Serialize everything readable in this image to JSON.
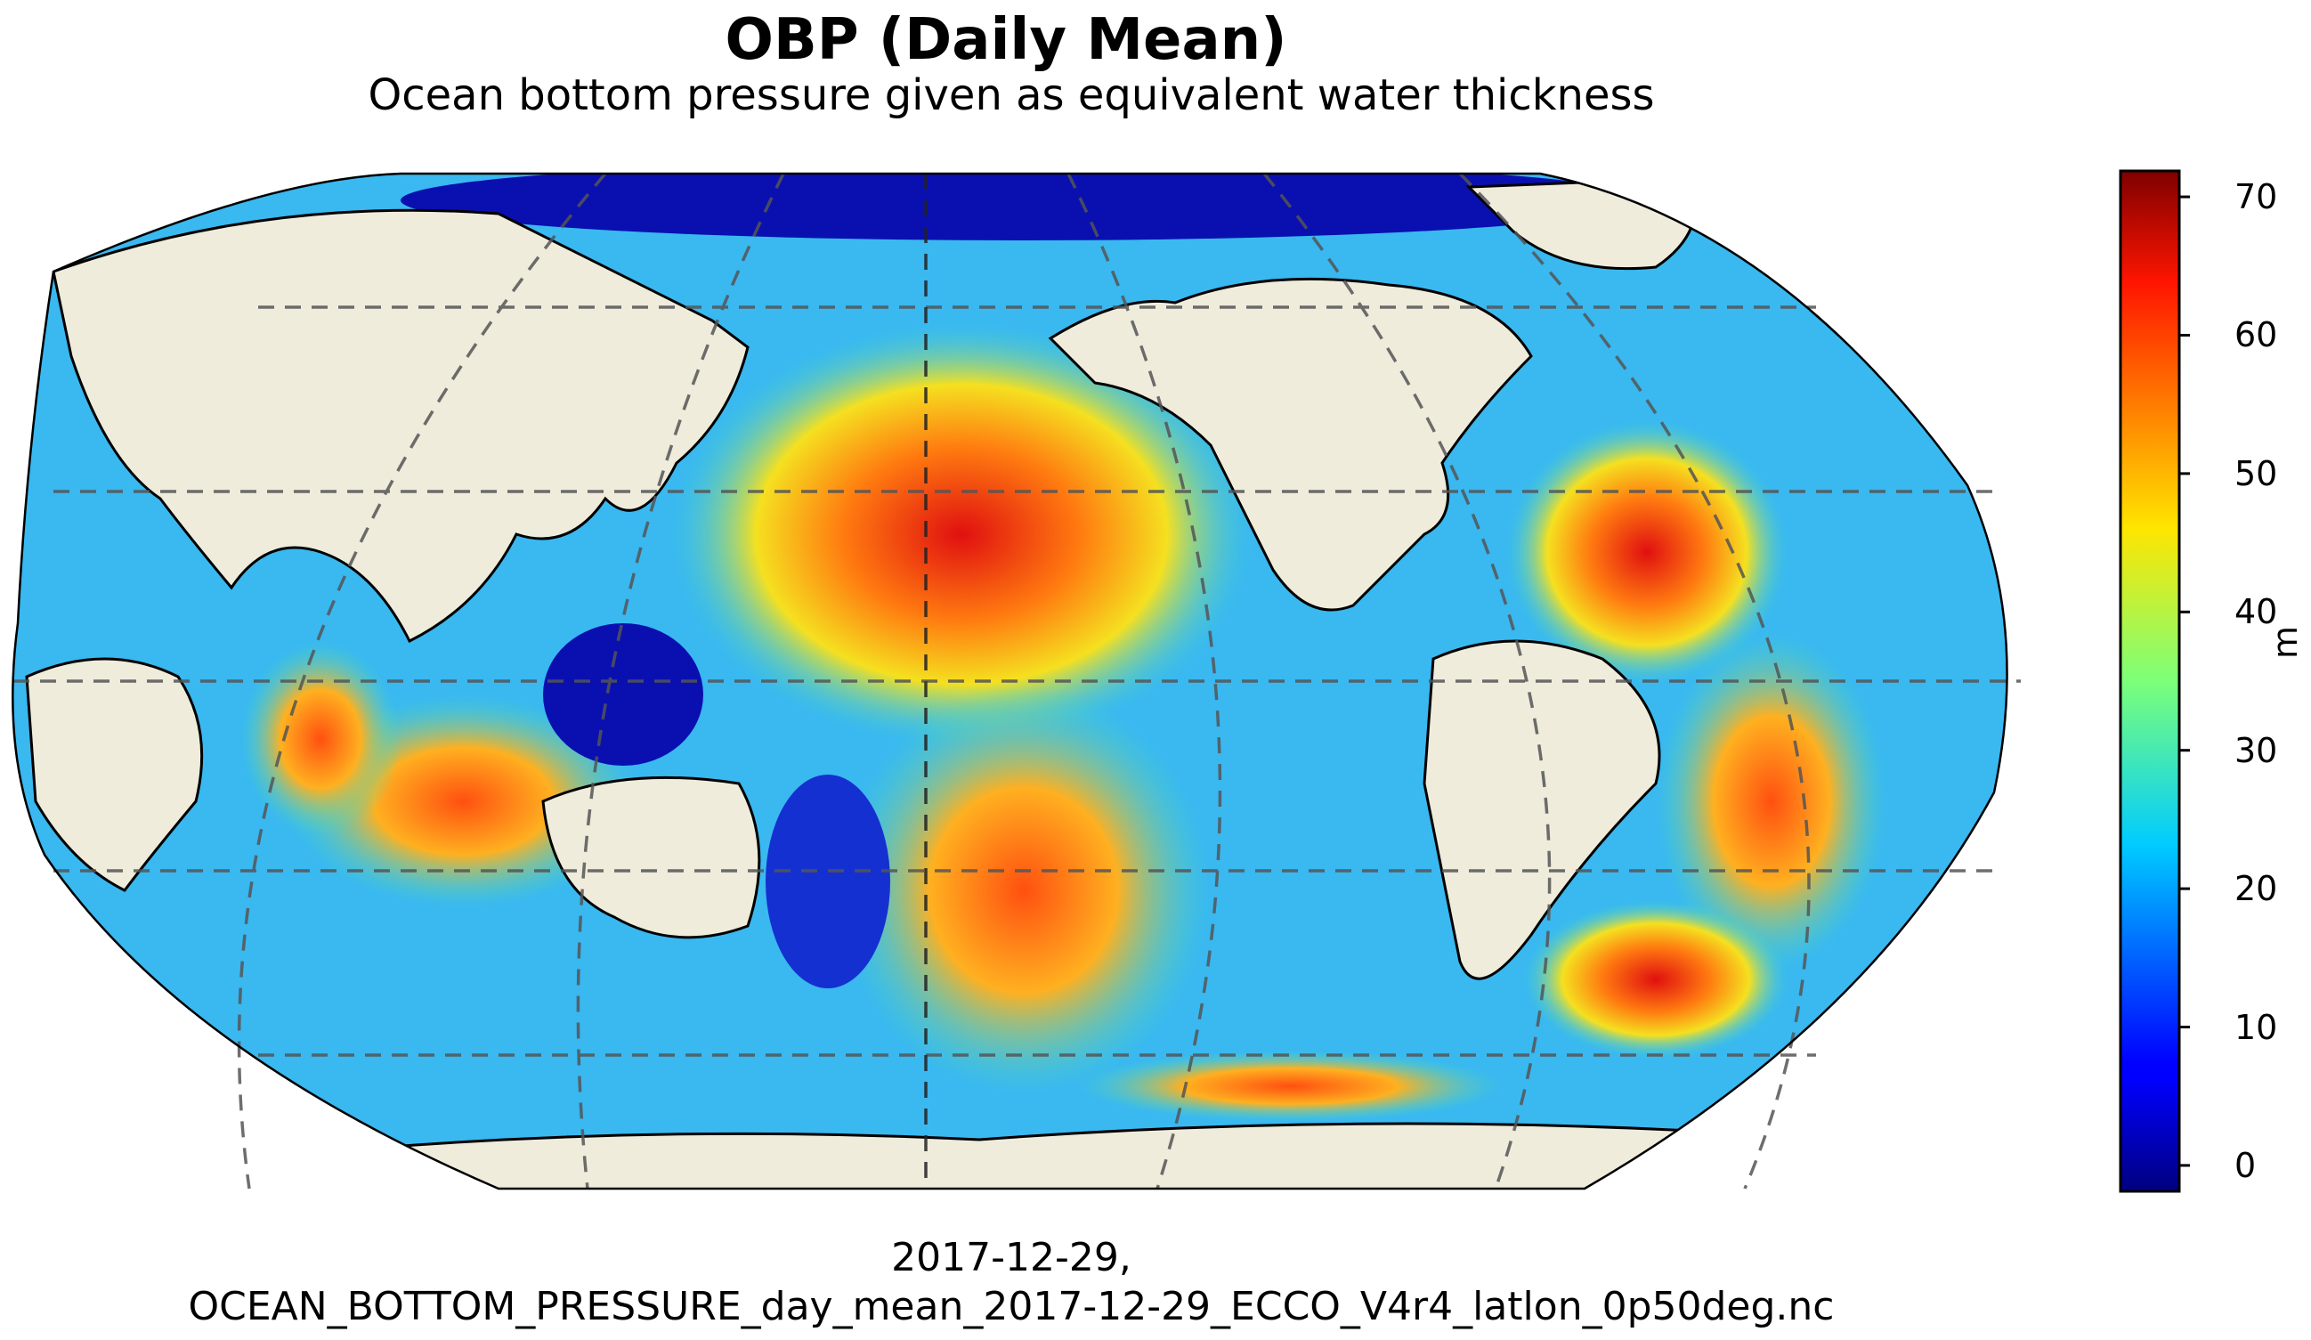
{
  "title": "OBP (Daily Mean)",
  "subtitle": "Ocean bottom pressure given as equivalent water thickness",
  "footer": {
    "date": "2017-12-29,",
    "filename": "OCEAN_BOTTOM_PRESSURE_day_mean_2017-12-29_ECCO_V4r4_latlon_0p50deg.nc"
  },
  "colorbar": {
    "label": "m",
    "colormap": "jet",
    "min": -2,
    "max": 72,
    "ticks": [
      "70",
      "60",
      "50",
      "40",
      "30",
      "20",
      "10",
      "0"
    ]
  },
  "colors": {
    "land": "#efecdc",
    "gridline": "#555555",
    "coastline": "#000000"
  },
  "map": {
    "projection": "Robinson",
    "gridlines": "dashed"
  }
}
